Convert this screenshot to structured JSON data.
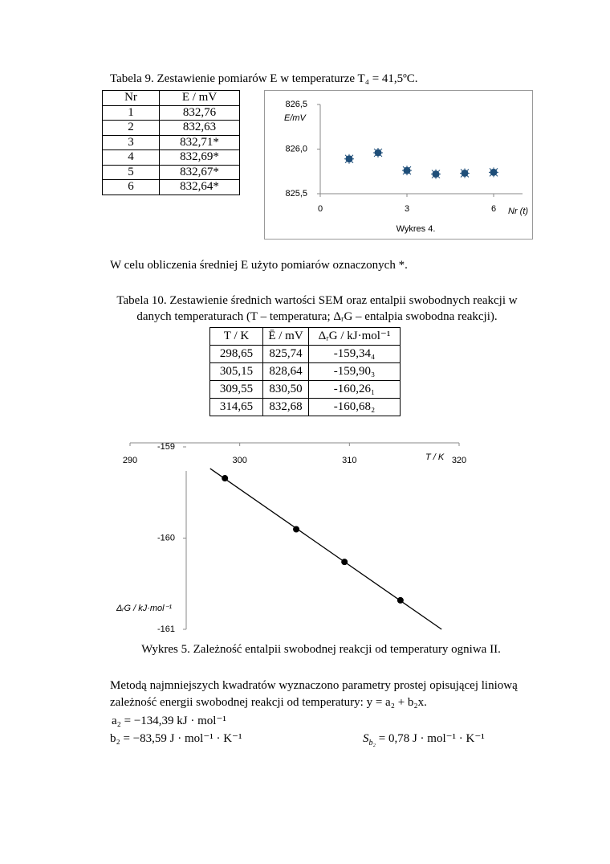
{
  "table9": {
    "caption": "Tabela 9. Zestawienie pomiarów E w temperaturze T₄ = 41,5ºC.",
    "header": [
      "Nr",
      "E / mV"
    ],
    "rows": [
      [
        "1",
        "832,76"
      ],
      [
        "2",
        "832,63"
      ],
      [
        "3",
        "832,71*"
      ],
      [
        "4",
        "832,69*"
      ],
      [
        "5",
        "832,67*"
      ],
      [
        "6",
        "832,64*"
      ]
    ]
  },
  "note": "W celu obliczenia średniej E użyto pomiarów oznaczonych *.",
  "table10": {
    "caption": [
      "Tabela 10. Zestawienie średnich wartości SEM oraz entalpii swobodnych reakcji w",
      "danych temperaturach (T – temperatura; ΔᵣG – entalpia swobodna reakcji)."
    ],
    "header": [
      "T / K",
      "Ē / mV",
      "ΔᵣG / kJ·mol⁻¹"
    ],
    "rows": [
      [
        "298,65",
        "825,74",
        "-159,34₄"
      ],
      [
        "305,15",
        "828,64",
        "-159,90₃"
      ],
      [
        "309,55",
        "830,50",
        "-160,26₁"
      ],
      [
        "314,65",
        "832,68",
        "-160,68₂"
      ]
    ]
  },
  "chart_data": [
    {
      "type": "scatter",
      "title": "Wykres 4.",
      "x_label": "Nr (t)",
      "y_label": "E/mV",
      "x": [
        1,
        2,
        3,
        4,
        5,
        6
      ],
      "values": [
        825.89,
        825.96,
        825.76,
        825.72,
        825.73,
        825.74
      ],
      "color": "#1f4e79",
      "xlim": [
        0,
        7
      ],
      "xticks": [
        0,
        3,
        6
      ],
      "ylim": [
        825.5,
        826.5
      ],
      "yticks": [
        {
          "value": 825.5,
          "label": "825,5"
        },
        {
          "value": 826.0,
          "label": "826,0"
        },
        {
          "value": 826.5,
          "label": "826,5"
        }
      ]
    },
    {
      "type": "scatter",
      "title": "Wykres 5. Zależność entalpii swobodnej reakcji od temperatury ogniwa II.",
      "x_label": "T / K",
      "y_label": "ΔᵣG / kJ·mol⁻¹",
      "x": [
        298.65,
        305.15,
        309.55,
        314.65
      ],
      "values": [
        -159.344,
        -159.903,
        -160.261,
        -160.682
      ],
      "color": "#000000",
      "trendline": true,
      "xlim": [
        290,
        320
      ],
      "xticks": [
        290,
        300,
        310,
        320
      ],
      "ylim": [
        -161,
        -159
      ],
      "yticks": [
        -161,
        -160,
        -159
      ]
    }
  ],
  "method": {
    "lines": [
      "Metodą najmniejszych kwadratów wyznaczono parametry prostej opisującej liniową",
      "zależność energii swobodnej reakcji od temperatury: y = a₂ + b₂x."
    ],
    "a2": "a₂ = −134,39 kJ · mol⁻¹",
    "b2": "b₂ = −83,59 J · mol⁻¹ · K⁻¹",
    "sb2": {
      "symbol": "S",
      "subscript": "b₂",
      "text": " = 0,78 J · mol⁻¹ · K⁻¹"
    }
  }
}
